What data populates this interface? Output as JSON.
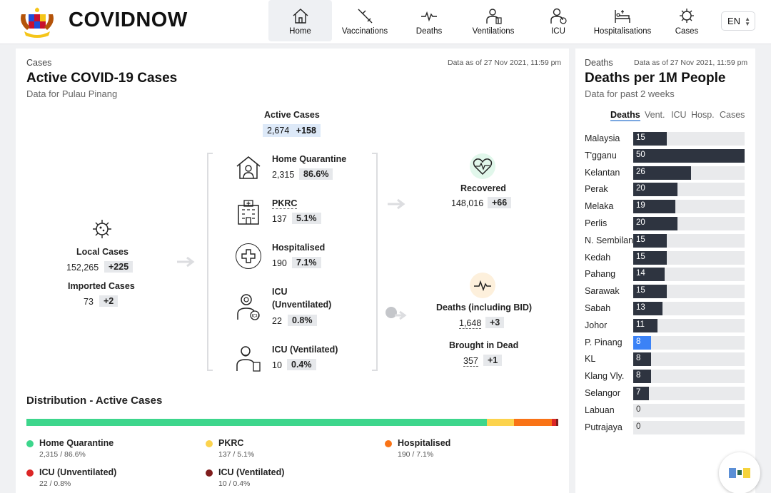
{
  "header": {
    "brand": "COVIDNOW",
    "nav": [
      {
        "label": "Home",
        "icon": "home-icon"
      },
      {
        "label": "Vaccinations",
        "icon": "syringe-icon"
      },
      {
        "label": "Deaths",
        "icon": "pulse-icon"
      },
      {
        "label": "Ventilations",
        "icon": "ventilator-icon"
      },
      {
        "label": "ICU",
        "icon": "icu-icon"
      },
      {
        "label": "Hospitalisations",
        "icon": "hospital-bed-icon"
      },
      {
        "label": "Cases",
        "icon": "virus-icon"
      }
    ],
    "active_nav": "Home",
    "language": "EN"
  },
  "cases_panel": {
    "eyebrow": "Cases",
    "title": "Active COVID-19 Cases",
    "subtitle": "Data for Pulau Pinang",
    "as_of": "Data as of 27 Nov 2021, 11:59 pm",
    "active": {
      "label": "Active Cases",
      "value": "2,674",
      "delta": "+158"
    },
    "local": {
      "label": "Local Cases",
      "value": "152,265",
      "delta": "+225"
    },
    "imported": {
      "label": "Imported Cases",
      "value": "73",
      "delta": "+2"
    },
    "categories": [
      {
        "label": "Home Quarantine",
        "value": "2,315",
        "pct": "86.6%",
        "icon": "home-quarantine-icon"
      },
      {
        "label": "PKRC",
        "value": "137",
        "pct": "5.1%",
        "icon": "building-icon"
      },
      {
        "label": "Hospitalised",
        "value": "190",
        "pct": "7.1%",
        "icon": "medical-cross-icon"
      },
      {
        "label": "ICU",
        "label2": "(Unventilated)",
        "value": "22",
        "pct": "0.8%",
        "icon": "icu-patient-icon"
      },
      {
        "label": "ICU (Ventilated)",
        "value": "10",
        "pct": "0.4%",
        "icon": "ventilated-patient-icon"
      }
    ],
    "recovered": {
      "label": "Recovered",
      "value": "148,016",
      "delta": "+66"
    },
    "deaths": {
      "label": "Deaths (including BID)",
      "value": "1,648",
      "delta": "+3"
    },
    "bid": {
      "label": "Brought in Dead",
      "value": "357",
      "delta": "+1"
    }
  },
  "distribution": {
    "title": "Distribution - Active Cases",
    "segments": [
      {
        "label": "Home Quarantine",
        "detail": "2,315 / 86.6%",
        "share": 86.6,
        "color": "#3dd68c"
      },
      {
        "label": "PKRC",
        "detail": "137 / 5.1%",
        "share": 5.1,
        "color": "#fcd34d"
      },
      {
        "label": "Hospitalised",
        "detail": "190 / 7.1%",
        "share": 7.1,
        "color": "#f97316"
      },
      {
        "label": "ICU (Unventilated)",
        "detail": "22 / 0.8%",
        "share": 0.8,
        "color": "#dc2626"
      },
      {
        "label": "ICU (Ventilated)",
        "detail": "10 / 0.4%",
        "share": 0.4,
        "color": "#7f1d1d"
      }
    ]
  },
  "deaths_panel": {
    "eyebrow": "Deaths",
    "as_of": "Data as of 27 Nov 2021, 11:59 pm",
    "title": "Deaths per 1M People",
    "subtitle": "Data for past 2 weeks",
    "tabs": [
      "Deaths",
      "Vent.",
      "ICU",
      "Hosp.",
      "Cases"
    ],
    "active_tab": "Deaths",
    "highlight_color": "#3b82f6",
    "bar_color": "#2e3440"
  },
  "chart_data": {
    "type": "bar",
    "orientation": "horizontal",
    "title": "Deaths per 1M People",
    "categories": [
      "Malaysia",
      "T'gganu",
      "Kelantan",
      "Perak",
      "Melaka",
      "Perlis",
      "N. Sembilan",
      "Kedah",
      "Pahang",
      "Sarawak",
      "Sabah",
      "Johor",
      "P. Pinang",
      "KL",
      "Klang Vly.",
      "Selangor",
      "Labuan",
      "Putrajaya"
    ],
    "values": [
      15,
      50,
      26,
      20,
      19,
      20,
      15,
      15,
      14,
      15,
      13,
      11,
      8,
      8,
      8,
      7,
      0,
      0
    ],
    "xlim": [
      0,
      50
    ],
    "highlight": "P. Pinang"
  }
}
